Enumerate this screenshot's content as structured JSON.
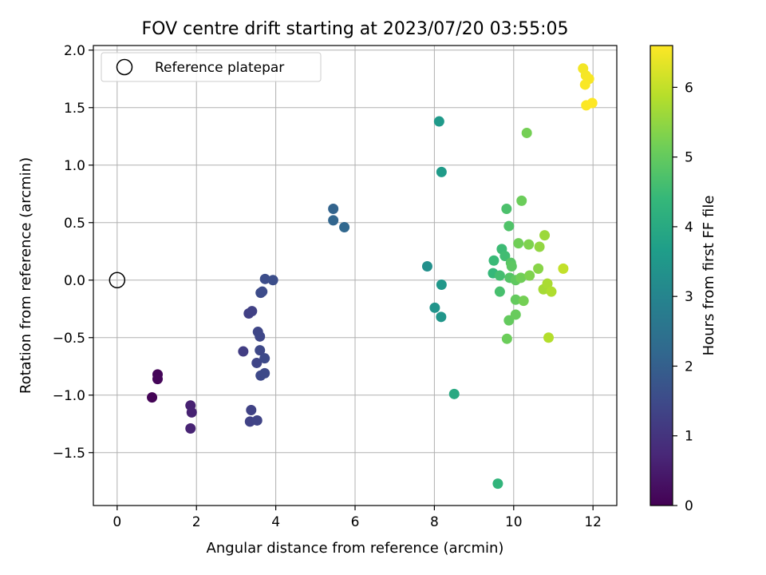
{
  "chart_data": {
    "type": "scatter",
    "title": "FOV centre drift starting at 2023/07/20 03:55:05",
    "xlabel": "Angular distance from reference (arcmin)",
    "ylabel": "Rotation from reference (arcmin)",
    "xlim": [
      -0.6,
      12.6
    ],
    "ylim": [
      -1.96,
      2.04
    ],
    "xticks": [
      0,
      2,
      4,
      6,
      8,
      10,
      12
    ],
    "yticks": [
      -1.5,
      -1.0,
      -0.5,
      0.0,
      0.5,
      1.0,
      1.5,
      2.0
    ],
    "xtick_labels": [
      "0",
      "2",
      "4",
      "6",
      "8",
      "10",
      "12"
    ],
    "ytick_labels": [
      "−1.5",
      "−1.0",
      "−0.5",
      "0.0",
      "0.5",
      "1.0",
      "1.5",
      "2.0"
    ],
    "grid": true,
    "legend": {
      "placement": "top-left",
      "entries": [
        "Reference platepar"
      ]
    },
    "reference_point": {
      "x": 0,
      "y": 0
    },
    "colorbar": {
      "label": "Hours from first FF file",
      "colormap": "viridis",
      "range": [
        0,
        6.6
      ],
      "ticks": [
        0,
        1,
        2,
        3,
        4,
        5,
        6
      ],
      "tick_labels": [
        "0",
        "1",
        "2",
        "3",
        "4",
        "5",
        "6"
      ],
      "stops": [
        "#440154",
        "#482878",
        "#3e4989",
        "#31688e",
        "#26828e",
        "#1f9e89",
        "#35b779",
        "#6ece58",
        "#b5de2b",
        "#fde725"
      ]
    },
    "points": [
      {
        "x": 0.88,
        "y": -1.02,
        "c": 0.05
      },
      {
        "x": 1.02,
        "y": -0.82,
        "c": 0.08
      },
      {
        "x": 1.02,
        "y": -0.86,
        "c": 0.1
      },
      {
        "x": 1.85,
        "y": -1.09,
        "c": 0.6
      },
      {
        "x": 1.88,
        "y": -1.15,
        "c": 0.62
      },
      {
        "x": 1.85,
        "y": -1.29,
        "c": 0.65
      },
      {
        "x": 3.18,
        "y": -0.62,
        "c": 1.2
      },
      {
        "x": 3.32,
        "y": -0.29,
        "c": 1.25
      },
      {
        "x": 3.4,
        "y": -0.27,
        "c": 1.28
      },
      {
        "x": 3.38,
        "y": -1.13,
        "c": 1.3
      },
      {
        "x": 3.35,
        "y": -1.23,
        "c": 1.32
      },
      {
        "x": 3.53,
        "y": -1.22,
        "c": 1.35
      },
      {
        "x": 3.52,
        "y": -0.72,
        "c": 1.38
      },
      {
        "x": 3.55,
        "y": -0.45,
        "c": 1.4
      },
      {
        "x": 3.6,
        "y": -0.49,
        "c": 1.42
      },
      {
        "x": 3.6,
        "y": -0.61,
        "c": 1.44
      },
      {
        "x": 3.62,
        "y": -0.83,
        "c": 1.46
      },
      {
        "x": 3.72,
        "y": -0.81,
        "c": 1.48
      },
      {
        "x": 3.72,
        "y": -0.68,
        "c": 1.5
      },
      {
        "x": 3.62,
        "y": -0.11,
        "c": 1.52
      },
      {
        "x": 3.66,
        "y": -0.1,
        "c": 1.54
      },
      {
        "x": 3.73,
        "y": 0.01,
        "c": 1.56
      },
      {
        "x": 3.93,
        "y": 0.0,
        "c": 1.58
      },
      {
        "x": 5.45,
        "y": 0.62,
        "c": 2.1
      },
      {
        "x": 5.45,
        "y": 0.52,
        "c": 2.15
      },
      {
        "x": 5.73,
        "y": 0.46,
        "c": 2.2
      },
      {
        "x": 7.82,
        "y": 0.12,
        "c": 3.3
      },
      {
        "x": 8.01,
        "y": -0.24,
        "c": 3.4
      },
      {
        "x": 8.17,
        "y": -0.32,
        "c": 3.45
      },
      {
        "x": 8.18,
        "y": -0.04,
        "c": 3.5
      },
      {
        "x": 8.12,
        "y": 1.38,
        "c": 3.55
      },
      {
        "x": 8.18,
        "y": 0.94,
        "c": 3.6
      },
      {
        "x": 8.5,
        "y": -0.99,
        "c": 4.0
      },
      {
        "x": 9.6,
        "y": -1.77,
        "c": 4.3
      },
      {
        "x": 9.48,
        "y": 0.06,
        "c": 4.4
      },
      {
        "x": 9.5,
        "y": 0.17,
        "c": 4.45
      },
      {
        "x": 9.7,
        "y": 0.27,
        "c": 4.5
      },
      {
        "x": 9.78,
        "y": 0.21,
        "c": 4.55
      },
      {
        "x": 9.65,
        "y": 0.04,
        "c": 4.6
      },
      {
        "x": 9.65,
        "y": -0.1,
        "c": 4.65
      },
      {
        "x": 9.82,
        "y": 0.62,
        "c": 4.7
      },
      {
        "x": 9.88,
        "y": 0.47,
        "c": 4.75
      },
      {
        "x": 9.9,
        "y": 0.02,
        "c": 4.8
      },
      {
        "x": 9.93,
        "y": 0.15,
        "c": 4.85
      },
      {
        "x": 9.95,
        "y": 0.12,
        "c": 4.9
      },
      {
        "x": 10.05,
        "y": 0.0,
        "c": 4.95
      },
      {
        "x": 10.05,
        "y": -0.17,
        "c": 5.0
      },
      {
        "x": 9.88,
        "y": -0.35,
        "c": 5.0
      },
      {
        "x": 10.05,
        "y": -0.3,
        "c": 5.05
      },
      {
        "x": 9.83,
        "y": -0.51,
        "c": 5.1
      },
      {
        "x": 10.2,
        "y": 0.69,
        "c": 5.1
      },
      {
        "x": 10.12,
        "y": 0.32,
        "c": 5.15
      },
      {
        "x": 10.18,
        "y": 0.02,
        "c": 5.15
      },
      {
        "x": 10.25,
        "y": -0.18,
        "c": 5.2
      },
      {
        "x": 10.33,
        "y": 1.28,
        "c": 5.2
      },
      {
        "x": 10.38,
        "y": 0.31,
        "c": 5.3
      },
      {
        "x": 10.4,
        "y": 0.04,
        "c": 5.3
      },
      {
        "x": 10.62,
        "y": 0.1,
        "c": 5.4
      },
      {
        "x": 10.65,
        "y": 0.29,
        "c": 5.5
      },
      {
        "x": 10.78,
        "y": 0.39,
        "c": 5.6
      },
      {
        "x": 10.75,
        "y": -0.08,
        "c": 5.7
      },
      {
        "x": 10.85,
        "y": -0.03,
        "c": 5.75
      },
      {
        "x": 10.95,
        "y": -0.1,
        "c": 5.8
      },
      {
        "x": 10.88,
        "y": -0.5,
        "c": 5.85
      },
      {
        "x": 11.25,
        "y": 0.1,
        "c": 6.0
      },
      {
        "x": 11.75,
        "y": 1.84,
        "c": 6.5
      },
      {
        "x": 11.82,
        "y": 1.78,
        "c": 6.52
      },
      {
        "x": 11.9,
        "y": 1.75,
        "c": 6.54
      },
      {
        "x": 11.8,
        "y": 1.7,
        "c": 6.56
      },
      {
        "x": 11.83,
        "y": 1.52,
        "c": 6.58
      },
      {
        "x": 11.98,
        "y": 1.54,
        "c": 6.6
      }
    ]
  }
}
